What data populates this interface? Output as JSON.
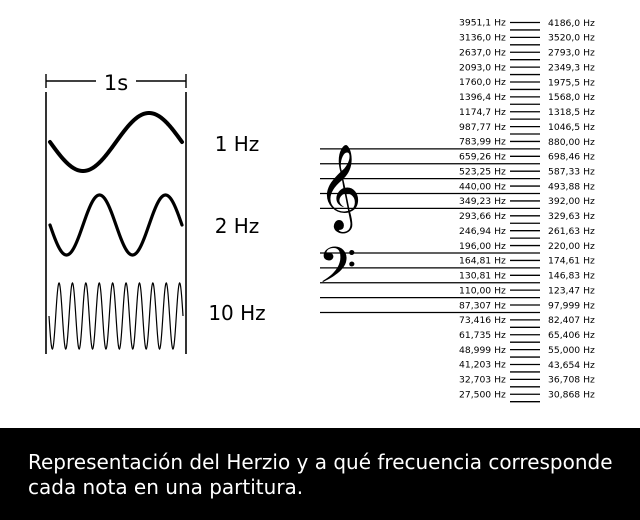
{
  "waves": {
    "duration_label": "1s",
    "rows": [
      {
        "label": "1 Hz",
        "cycles": 1
      },
      {
        "label": "2 Hz",
        "cycles": 2
      },
      {
        "label": "10 Hz",
        "cycles": 10
      }
    ]
  },
  "staff": {
    "treble_clef_glyph": "𝄞",
    "bass_clef_glyph": "𝄢"
  },
  "frequencies": {
    "left": [
      "3951,1 Hz",
      "3136,0 Hz",
      "2637,0 Hz",
      "2093,0 Hz",
      "1760,0 Hz",
      "1396,4 Hz",
      "1174,7 Hz",
      "987,77 Hz",
      "783,99 Hz",
      "659,26 Hz",
      "523,25 Hz",
      "440,00 Hz",
      "349,23 Hz",
      "293,66 Hz",
      "246,94 Hz",
      "196,00 Hz",
      "164,81 Hz",
      "130,81 Hz",
      "110,00 Hz",
      "87,307 Hz",
      "73,416 Hz",
      "61,735 Hz",
      "48,999 Hz",
      "41,203 Hz",
      "32,703 Hz",
      "27,500 Hz"
    ],
    "right": [
      "4186,0 Hz",
      "3520,0 Hz",
      "2793,0 Hz",
      "2349,3 Hz",
      "1975,5 Hz",
      "1568,0 Hz",
      "1318,5 Hz",
      "1046,5 Hz",
      "880,00 Hz",
      "698,46 Hz",
      "587,33 Hz",
      "493,88 Hz",
      "392,00 Hz",
      "329,63 Hz",
      "261,63 Hz",
      "220,00 Hz",
      "174,61 Hz",
      "146,83 Hz",
      "123,47 Hz",
      "97,999 Hz",
      "82,407 Hz",
      "65,406 Hz",
      "55,000 Hz",
      "43,654 Hz",
      "36,708 Hz",
      "30,868 Hz"
    ]
  },
  "caption": "Representación del Herzio y a qué frecuencia corresponde cada nota en una partitura."
}
